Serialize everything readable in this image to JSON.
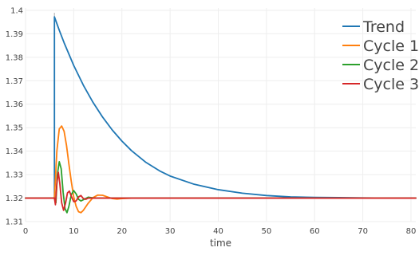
{
  "chart_data": {
    "type": "line",
    "title": "",
    "xlabel": "time",
    "ylabel": "",
    "xlim": [
      0,
      81
    ],
    "ylim": [
      1.31,
      1.401
    ],
    "x_ticks": [
      0,
      10,
      20,
      30,
      40,
      50,
      60,
      70,
      80
    ],
    "y_ticks": [
      1.31,
      1.32,
      1.33,
      1.34,
      1.35,
      1.36,
      1.37,
      1.38,
      1.39,
      1.4
    ],
    "grid": true,
    "legend_position": "top-right",
    "baseline": 1.32,
    "event_line_x": 6,
    "series": [
      {
        "name": "Trend",
        "color": "#1f77b4",
        "x": [
          0,
          6,
          6,
          7,
          8,
          10,
          12,
          14,
          16,
          18,
          20,
          22,
          25,
          28,
          30,
          35,
          40,
          45,
          50,
          55,
          60,
          65,
          70,
          75,
          80,
          81
        ],
        "y": [
          1.32,
          1.32,
          1.3972,
          1.3915,
          1.3862,
          1.3765,
          1.3681,
          1.3608,
          1.3545,
          1.349,
          1.3443,
          1.3402,
          1.3352,
          1.3314,
          1.3294,
          1.3259,
          1.3236,
          1.3221,
          1.3211,
          1.3205,
          1.3203,
          1.3202,
          1.3201,
          1.32,
          1.32,
          1.32
        ]
      },
      {
        "name": "Cycle 1",
        "color": "#ff7f0e",
        "x": [
          0,
          6,
          6.5,
          7,
          7.5,
          8,
          8.5,
          9,
          9.5,
          10,
          10.5,
          11,
          11.5,
          12,
          13,
          14,
          15,
          16,
          17,
          18,
          19,
          20,
          22,
          25,
          81
        ],
        "y": [
          1.32,
          1.32,
          1.34,
          1.3495,
          1.3507,
          1.3485,
          1.3425,
          1.3345,
          1.327,
          1.3205,
          1.3165,
          1.3142,
          1.3138,
          1.3148,
          1.3178,
          1.3202,
          1.3213,
          1.3212,
          1.3205,
          1.3198,
          1.3196,
          1.3198,
          1.32,
          1.32,
          1.32
        ]
      },
      {
        "name": "Cycle 2",
        "color": "#2ca02c",
        "x": [
          0,
          6,
          6.3,
          6.6,
          7,
          7.4,
          7.8,
          8.2,
          8.6,
          9,
          9.5,
          10,
          10.5,
          11,
          11.5,
          12,
          13,
          14,
          15,
          81
        ],
        "y": [
          1.32,
          1.32,
          1.318,
          1.33,
          1.3355,
          1.3325,
          1.3225,
          1.3155,
          1.3138,
          1.3165,
          1.3215,
          1.3232,
          1.3218,
          1.3195,
          1.3188,
          1.3193,
          1.3204,
          1.3201,
          1.32,
          1.32
        ]
      },
      {
        "name": "Cycle 3",
        "color": "#d62728",
        "x": [
          0,
          6,
          6.2,
          6.5,
          6.8,
          7.1,
          7.5,
          7.9,
          8.3,
          8.7,
          9.1,
          9.5,
          10,
          10.5,
          11,
          11.5,
          12,
          12.5,
          13,
          81
        ],
        "y": [
          1.32,
          1.32,
          1.3172,
          1.3262,
          1.331,
          1.3265,
          1.318,
          1.3148,
          1.3178,
          1.3222,
          1.323,
          1.3208,
          1.3185,
          1.3188,
          1.3205,
          1.3211,
          1.3198,
          1.3195,
          1.32,
          1.32
        ]
      }
    ]
  }
}
